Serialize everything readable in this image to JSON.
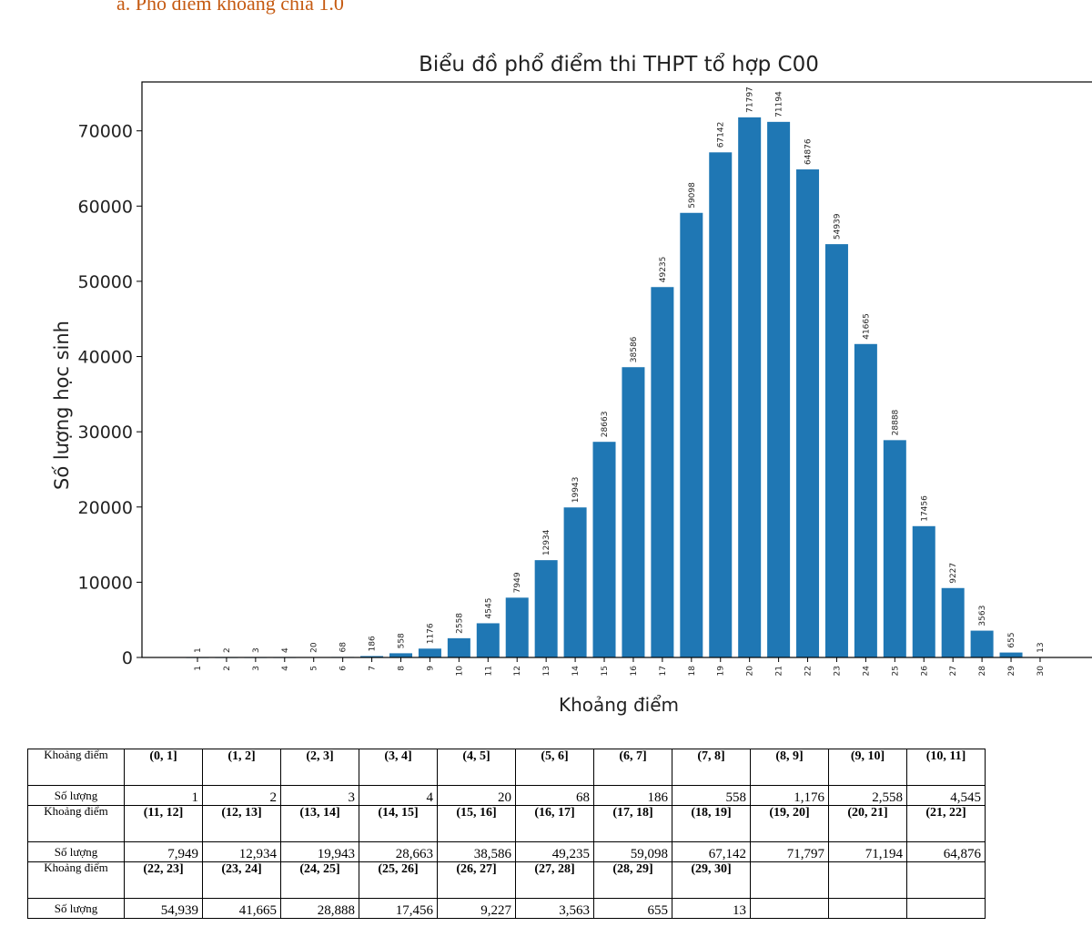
{
  "heading": "a.   Phổ điểm khoảng chia 1.0",
  "chart_data": {
    "type": "bar",
    "title": "Biểu đồ phổ điểm thi THPT tổ hợp C00",
    "xlabel": "Khoảng điểm",
    "ylabel": "Số lượng học sinh",
    "categories": [
      "1",
      "2",
      "3",
      "4",
      "5",
      "6",
      "7",
      "8",
      "9",
      "10",
      "11",
      "12",
      "13",
      "14",
      "15",
      "16",
      "17",
      "18",
      "19",
      "20",
      "21",
      "22",
      "23",
      "24",
      "25",
      "26",
      "27",
      "28",
      "29",
      "30"
    ],
    "values": [
      1,
      2,
      3,
      4,
      20,
      68,
      186,
      558,
      1176,
      2558,
      4545,
      7949,
      12934,
      19943,
      28663,
      38586,
      49235,
      59098,
      67142,
      71797,
      71194,
      64876,
      54939,
      41665,
      28888,
      17456,
      9227,
      3563,
      655,
      13
    ],
    "data_labels": [
      "1",
      "2",
      "3",
      "4",
      "20",
      "68",
      "186",
      "558",
      "1176",
      "2558",
      "4545",
      "7949",
      "12934",
      "19943",
      "28663",
      "38586",
      "49235",
      "59098",
      "67142",
      "71797",
      "71194",
      "64876",
      "54939",
      "41665",
      "28888",
      "17456",
      "9227",
      "3563",
      "655",
      "13"
    ],
    "yticks": [
      0,
      10000,
      20000,
      30000,
      40000,
      50000,
      60000,
      70000
    ],
    "ytick_labels": [
      "0",
      "10000",
      "20000",
      "30000",
      "40000",
      "50000",
      "60000",
      "70000"
    ],
    "ylim": [
      0,
      76500
    ],
    "color": "#1f77b4",
    "grid": false
  },
  "table": {
    "row_header_range": "Khoảng điểm",
    "row_header_count": "Số lượng",
    "rows": [
      {
        "ranges": [
          "(0, 1]",
          "(1, 2]",
          "(2, 3]",
          "(3, 4]",
          "(4, 5]",
          "(5, 6]",
          "(6, 7]",
          "(7, 8]",
          "(8, 9]",
          "(9, 10]",
          "(10, 11]"
        ],
        "counts": [
          "1",
          "2",
          "3",
          "4",
          "20",
          "68",
          "186",
          "558",
          "1,176",
          "2,558",
          "4,545"
        ]
      },
      {
        "ranges": [
          "(11, 12]",
          "(12, 13]",
          "(13, 14]",
          "(14, 15]",
          "(15, 16]",
          "(16, 17]",
          "(17, 18]",
          "(18, 19]",
          "(19, 20]",
          "(20, 21]",
          "(21, 22]"
        ],
        "counts": [
          "7,949",
          "12,934",
          "19,943",
          "28,663",
          "38,586",
          "49,235",
          "59,098",
          "67,142",
          "71,797",
          "71,194",
          "64,876"
        ]
      },
      {
        "ranges": [
          "(22, 23]",
          "(23, 24]",
          "(24, 25]",
          "(25, 26]",
          "(26, 27]",
          "(27, 28]",
          "(28, 29]",
          "(29, 30]",
          "",
          "",
          ""
        ],
        "counts": [
          "54,939",
          "41,665",
          "28,888",
          "17,456",
          "9,227",
          "3,563",
          "655",
          "13",
          "",
          "",
          ""
        ]
      }
    ]
  }
}
